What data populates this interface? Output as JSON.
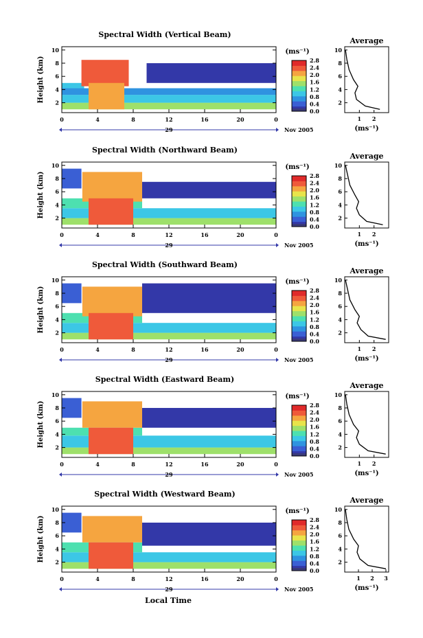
{
  "figure": {
    "xlabel_bottom": "Local Time",
    "colorbar_units": "(ms⁻¹)",
    "colorbar_ticks": [
      "0.0",
      "0.4",
      "0.8",
      "1.2",
      "1.6",
      "2.0",
      "2.4",
      "2.8"
    ],
    "date_suffix": "Nov 2005",
    "average_title": "Average",
    "average_unit": "(ms⁻¹)",
    "ylabel": "Height (km)",
    "x_ticks": [
      "0",
      "4",
      "8",
      "12",
      "16",
      "20",
      "0"
    ],
    "date_label": "29",
    "y_ticks": [
      "2",
      "4",
      "6",
      "8",
      "10"
    ],
    "avg_y_ticks": [
      "2",
      "4",
      "6",
      "8",
      "10"
    ],
    "colors": {
      "scale": [
        "#3338a8",
        "#3a5fd4",
        "#2f93e0",
        "#3cc7e6",
        "#4de0b0",
        "#9ee06a",
        "#e8e44a",
        "#f5a540",
        "#ef5a3a",
        "#e02a2a"
      ],
      "zero": "#3a3a7a"
    }
  },
  "chart_data": [
    {
      "type": "heatmap",
      "title": "Spectral Width (Vertical Beam)",
      "xlabel": "",
      "ylabel": "Height (km)",
      "xlim": [
        0,
        24
      ],
      "ylim": [
        0.5,
        10.5
      ],
      "zlim": [
        0.0,
        2.8
      ],
      "regions": [
        {
          "t": [
            0,
            24
          ],
          "h": [
            1,
            2
          ],
          "v": 1.5
        },
        {
          "t": [
            0,
            24
          ],
          "h": [
            2,
            3.2
          ],
          "v": 1.1
        },
        {
          "t": [
            0,
            24
          ],
          "h": [
            3.2,
            4.2
          ],
          "v": 0.8
        },
        {
          "t": [
            0,
            2.5
          ],
          "h": [
            4.2,
            5
          ],
          "v": 0.9
        },
        {
          "t": [
            2.2,
            7.5
          ],
          "h": [
            4.5,
            8.5
          ],
          "v": 2.5
        },
        {
          "t": [
            3,
            7
          ],
          "h": [
            1,
            5
          ],
          "v": 2.2
        },
        {
          "t": [
            9.5,
            24
          ],
          "h": [
            5,
            8
          ],
          "v": 0.2
        }
      ],
      "average": {
        "x": [
          2.4,
          1.4,
          0.8,
          0.7,
          0.9,
          0.6,
          0.3,
          0.15,
          0.05
        ],
        "h": [
          1,
          1.5,
          2.5,
          3.5,
          4.5,
          5.5,
          7,
          8.5,
          10
        ],
        "xlim": [
          0,
          3
        ],
        "xticks": [
          "1",
          "2"
        ]
      }
    },
    {
      "type": "heatmap",
      "title": "Spectral Width (Northward Beam)",
      "xlabel": "",
      "ylabel": "Height (km)",
      "xlim": [
        0,
        24
      ],
      "ylim": [
        0.5,
        10.5
      ],
      "zlim": [
        0.0,
        2.8
      ],
      "regions": [
        {
          "t": [
            0,
            24
          ],
          "h": [
            1,
            2
          ],
          "v": 1.6
        },
        {
          "t": [
            0,
            24
          ],
          "h": [
            2,
            3.5
          ],
          "v": 1.0
        },
        {
          "t": [
            0,
            9
          ],
          "h": [
            3.5,
            5
          ],
          "v": 1.2
        },
        {
          "t": [
            2.3,
            9
          ],
          "h": [
            4.5,
            9
          ],
          "v": 2.2
        },
        {
          "t": [
            3,
            8
          ],
          "h": [
            1,
            5
          ],
          "v": 2.5
        },
        {
          "t": [
            9,
            24
          ],
          "h": [
            5,
            7.5
          ],
          "v": 0.2
        },
        {
          "t": [
            0,
            2.2
          ],
          "h": [
            6.5,
            9.5
          ],
          "v": 0.4
        }
      ],
      "average": {
        "x": [
          2.6,
          1.5,
          1.0,
          0.8,
          0.95,
          0.7,
          0.35,
          0.2,
          0.05
        ],
        "h": [
          1,
          1.5,
          2.5,
          3.5,
          4.5,
          5.5,
          7,
          8.5,
          10
        ],
        "xlim": [
          0,
          3
        ],
        "xticks": [
          "1",
          "2"
        ]
      }
    },
    {
      "type": "heatmap",
      "title": "Spectral Width (Southward Beam)",
      "xlabel": "",
      "ylabel": "Height (km)",
      "xlim": [
        0,
        24
      ],
      "ylim": [
        0.5,
        10.5
      ],
      "zlim": [
        0.0,
        2.8
      ],
      "regions": [
        {
          "t": [
            0,
            24
          ],
          "h": [
            1,
            2
          ],
          "v": 1.6
        },
        {
          "t": [
            0,
            24
          ],
          "h": [
            2,
            3.5
          ],
          "v": 1.0
        },
        {
          "t": [
            0,
            9
          ],
          "h": [
            3.5,
            5
          ],
          "v": 1.3
        },
        {
          "t": [
            2.3,
            9
          ],
          "h": [
            4.5,
            9
          ],
          "v": 2.2
        },
        {
          "t": [
            3,
            8
          ],
          "h": [
            1,
            5
          ],
          "v": 2.5
        },
        {
          "t": [
            9,
            24
          ],
          "h": [
            5,
            9.5
          ],
          "v": 0.2
        },
        {
          "t": [
            0,
            2.2
          ],
          "h": [
            6.5,
            9.5
          ],
          "v": 0.4
        }
      ],
      "average": {
        "x": [
          2.8,
          1.6,
          1.1,
          0.85,
          1.0,
          0.7,
          0.35,
          0.2,
          0.05
        ],
        "h": [
          1,
          1.5,
          2.5,
          3.5,
          4.5,
          5.5,
          7,
          8.5,
          10
        ],
        "xlim": [
          0,
          3
        ],
        "xticks": [
          "1",
          "2"
        ]
      }
    },
    {
      "type": "heatmap",
      "title": "Spectral Width (Eastward Beam)",
      "xlabel": "",
      "ylabel": "Height (km)",
      "xlim": [
        0,
        24
      ],
      "ylim": [
        0.5,
        10.5
      ],
      "zlim": [
        0.0,
        2.8
      ],
      "regions": [
        {
          "t": [
            0,
            24
          ],
          "h": [
            1,
            2
          ],
          "v": 1.6
        },
        {
          "t": [
            0,
            24
          ],
          "h": [
            2,
            3.8
          ],
          "v": 1.0
        },
        {
          "t": [
            0,
            9
          ],
          "h": [
            3.8,
            5
          ],
          "v": 1.3
        },
        {
          "t": [
            2.3,
            9
          ],
          "h": [
            5,
            9
          ],
          "v": 2.0
        },
        {
          "t": [
            3,
            8
          ],
          "h": [
            1,
            5
          ],
          "v": 2.5
        },
        {
          "t": [
            9,
            24
          ],
          "h": [
            5,
            8
          ],
          "v": 0.2
        },
        {
          "t": [
            0,
            2.2
          ],
          "h": [
            6.5,
            9.5
          ],
          "v": 0.4
        }
      ],
      "average": {
        "x": [
          2.8,
          1.6,
          1.0,
          0.8,
          0.95,
          0.6,
          0.3,
          0.15,
          0.05
        ],
        "h": [
          1,
          1.5,
          2.5,
          3.5,
          4.5,
          5.5,
          7,
          8.5,
          10
        ],
        "xlim": [
          0,
          3
        ],
        "xticks": [
          "1",
          "2"
        ]
      }
    },
    {
      "type": "heatmap",
      "title": "Spectral Width (Westward Beam)",
      "xlabel": "",
      "ylabel": "Height (km)",
      "xlim": [
        0,
        24
      ],
      "ylim": [
        0.5,
        10.5
      ],
      "zlim": [
        0.0,
        2.8
      ],
      "regions": [
        {
          "t": [
            0,
            24
          ],
          "h": [
            1,
            2
          ],
          "v": 1.6
        },
        {
          "t": [
            0,
            24
          ],
          "h": [
            2,
            3.5
          ],
          "v": 1.0
        },
        {
          "t": [
            0,
            9
          ],
          "h": [
            3.5,
            5
          ],
          "v": 1.3
        },
        {
          "t": [
            2.3,
            9
          ],
          "h": [
            5,
            9
          ],
          "v": 2.1
        },
        {
          "t": [
            3,
            8
          ],
          "h": [
            1,
            5
          ],
          "v": 2.5
        },
        {
          "t": [
            9,
            24
          ],
          "h": [
            4.5,
            8
          ],
          "v": 0.2
        },
        {
          "t": [
            0,
            2.2
          ],
          "h": [
            6.5,
            9.5
          ],
          "v": 0.4
        }
      ],
      "average": {
        "x": [
          3.0,
          1.7,
          1.1,
          0.9,
          1.0,
          0.65,
          0.3,
          0.15,
          0.05
        ],
        "h": [
          1,
          1.5,
          2.5,
          3.5,
          4.5,
          5.5,
          7,
          8.5,
          10
        ],
        "xlim": [
          0,
          3.2
        ],
        "xticks": [
          "1",
          "2",
          "3"
        ]
      }
    }
  ]
}
